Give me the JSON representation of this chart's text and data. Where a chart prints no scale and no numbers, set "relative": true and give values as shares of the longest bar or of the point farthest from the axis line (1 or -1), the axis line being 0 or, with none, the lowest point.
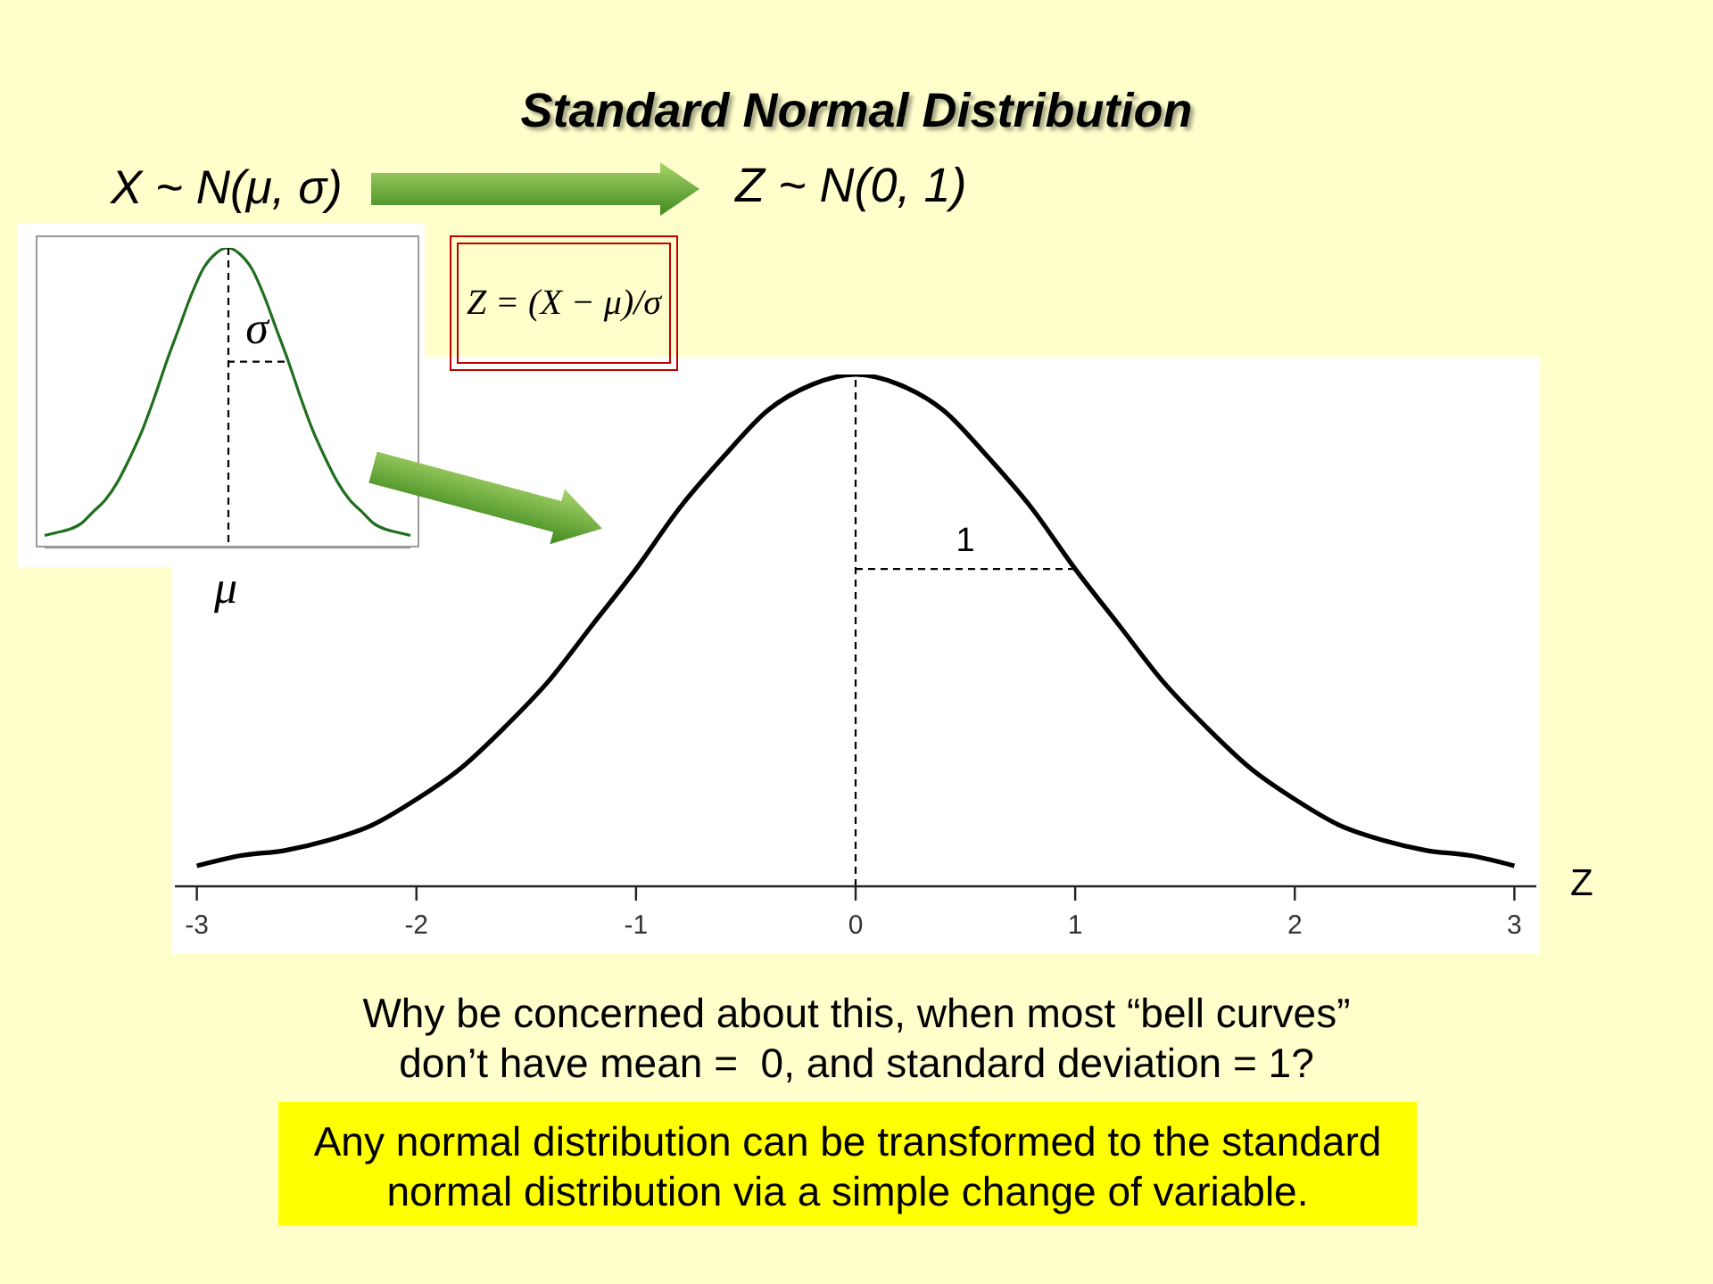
{
  "chart_data": [
    {
      "type": "line",
      "title": "Standard Normal Distribution",
      "xlabel": "Z",
      "relative": true,
      "marker": "none",
      "line_style": "solid",
      "x": [
        -3,
        -2.8,
        -2.6,
        -2.4,
        -2.2,
        -2,
        -1.8,
        -1.6,
        -1.4,
        -1.2,
        -1,
        -0.8,
        -0.6,
        -0.4,
        -0.2,
        0,
        0.2,
        0.4,
        0.6,
        0.8,
        1,
        1.2,
        1.4,
        1.6,
        1.8,
        2,
        2.2,
        2.4,
        2.6,
        2.8,
        3
      ],
      "series": [
        {
          "color": "#000000",
          "values": [
            0.04,
            0.06,
            0.07,
            0.09,
            0.12,
            0.17,
            0.23,
            0.31,
            0.4,
            0.51,
            0.62,
            0.74,
            0.84,
            0.93,
            0.98,
            1,
            0.98,
            0.93,
            0.84,
            0.74,
            0.62,
            0.51,
            0.4,
            0.31,
            0.23,
            0.17,
            0.12,
            0.09,
            0.07,
            0.06,
            0.04
          ]
        },
        {
          "type": "line",
          "name": "1",
          "color": "#000000",
          "line_style": "dashed",
          "values": [
            null,
            null,
            null,
            null,
            null,
            null,
            null,
            null,
            null,
            null,
            null,
            null,
            null,
            null,
            null,
            0.62,
            0.62,
            0.62,
            0.62,
            0.62,
            0.62,
            null,
            null,
            null,
            null,
            null,
            null,
            null,
            null,
            null,
            null
          ]
        }
      ],
      "xlim": [
        -3.1,
        3.1
      ],
      "xticks": [
        -3,
        -2,
        -1,
        0,
        1,
        2,
        3
      ],
      "ref_lines": [
        {
          "axis": "x",
          "value": 0,
          "color": "#000000",
          "line_style": "dashed"
        }
      ],
      "annotations": [
        "Z ~ N(0, 1)",
        "Z = (X − μ)/σ",
        "Why be concerned about this, when most “bell curves” don’t have mean =  0, and standard deviation = 1?",
        "Any normal distribution can be transformed to the standard normal distribution via a simple change of variable."
      ]
    },
    {
      "type": "line",
      "relative": true,
      "marker": "none",
      "line_style": "solid",
      "categories": [
        null,
        null,
        null,
        null,
        null,
        null,
        null,
        null,
        null,
        null,
        null,
        null,
        null,
        null,
        null,
        null,
        null,
        null,
        null,
        null,
        null,
        null,
        null,
        null,
        null,
        null,
        null,
        null,
        null,
        null,
        null
      ],
      "series": [
        {
          "color": "#1e6e1e",
          "values": [
            0.04,
            0.05,
            0.06,
            0.08,
            0.12,
            0.16,
            0.22,
            0.3,
            0.39,
            0.5,
            0.62,
            0.73,
            0.84,
            0.93,
            0.98,
            1,
            0.98,
            0.93,
            0.84,
            0.73,
            0.62,
            0.5,
            0.39,
            0.3,
            0.22,
            0.16,
            0.12,
            0.08,
            0.06,
            0.05,
            0.04
          ]
        },
        {
          "type": "line",
          "name": "σ",
          "color": "#000000",
          "line_style": "dashed",
          "values": [
            null,
            null,
            null,
            null,
            null,
            null,
            null,
            null,
            null,
            null,
            null,
            null,
            null,
            null,
            null,
            0.62,
            0.62,
            0.62,
            0.62,
            0.62,
            0.62,
            null,
            null,
            null,
            null,
            null,
            null,
            null,
            null,
            null,
            null
          ]
        }
      ],
      "annotations": [
        "μ",
        "X ~ N(μ, σ)"
      ]
    }
  ]
}
